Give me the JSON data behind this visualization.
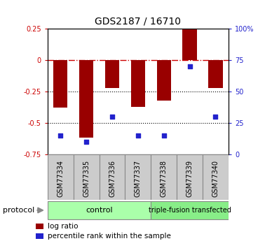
{
  "title": "GDS2187 / 16710",
  "samples": [
    "GSM77334",
    "GSM77335",
    "GSM77336",
    "GSM77337",
    "GSM77338",
    "GSM77339",
    "GSM77340"
  ],
  "log_ratio": [
    -0.38,
    -0.62,
    -0.22,
    -0.37,
    -0.32,
    0.27,
    -0.22
  ],
  "percentile_rank": [
    15,
    10,
    30,
    15,
    15,
    70,
    30
  ],
  "bar_color": "#990000",
  "dot_color": "#2222cc",
  "ylim_left": [
    -0.75,
    0.25
  ],
  "ylim_right": [
    0,
    100
  ],
  "yticks_left": [
    -0.75,
    -0.5,
    -0.25,
    0,
    0.25
  ],
  "ytick_labels_left": [
    "-0.75",
    "-0.5",
    "-0.25",
    "0",
    "0.25"
  ],
  "yticks_right": [
    0,
    25,
    50,
    75,
    100
  ],
  "ytick_labels_right": [
    "0",
    "25",
    "50",
    "75",
    "100%"
  ],
  "control_label": "control",
  "transfected_label": "triple-fusion transfected",
  "control_count": 4,
  "transfected_count": 3,
  "group_color_control": "#aaffaa",
  "group_color_transfected": "#88ee88",
  "sample_bg_color": "#cccccc",
  "protocol_label": "protocol",
  "legend_entries": [
    {
      "label": "log ratio",
      "color": "#990000"
    },
    {
      "label": "percentile rank within the sample",
      "color": "#2222cc"
    }
  ],
  "hline_zero_color": "#cc0000",
  "hline_dotted_color": "#000000",
  "bg_color": "#ffffff",
  "bar_width": 0.55,
  "title_fontsize": 10,
  "tick_fontsize": 7,
  "sample_fontsize": 7,
  "group_fontsize": 8,
  "legend_fontsize": 7.5
}
